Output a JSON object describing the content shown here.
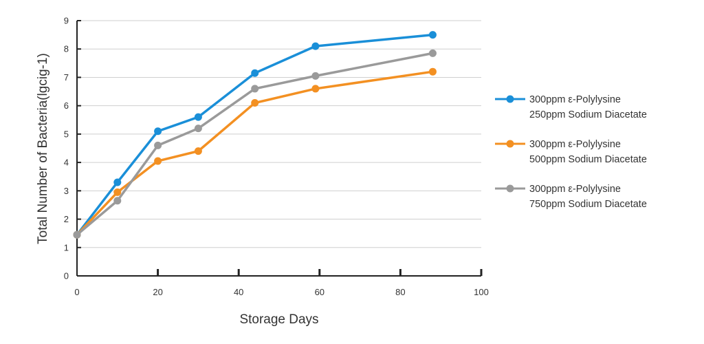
{
  "chart_data": {
    "type": "line",
    "xlabel": "Storage Days",
    "ylabel": "Total Number of Bacteria(lgcig-1)",
    "xlim": [
      0,
      100
    ],
    "ylim": [
      0,
      9
    ],
    "xticks": [
      "0",
      "20",
      "40",
      "60",
      "80",
      "100"
    ],
    "yticks": [
      "0",
      "1",
      "2",
      "3",
      "4",
      "5",
      "6",
      "7",
      "8",
      "9"
    ],
    "grid": "horizontal",
    "legend_position": "right",
    "x": [
      0,
      10,
      20,
      30,
      44,
      59,
      88
    ],
    "series": [
      {
        "name": "300ppm ε-Polylysine 250ppm Sodium Diacetate",
        "legend_lines": [
          "300ppm ε-Polylysine",
          "250ppm Sodium Diacetate"
        ],
        "color": "#1a8fd8",
        "values": [
          1.45,
          3.3,
          5.1,
          5.6,
          7.15,
          8.1,
          8.5
        ]
      },
      {
        "name": "300ppm ε-Polylysine 500ppm Sodium Diacetate",
        "legend_lines": [
          "300ppm ε-Polylysine",
          "500ppm Sodium Diacetate"
        ],
        "color": "#f39022",
        "values": [
          1.45,
          2.95,
          4.05,
          4.4,
          6.1,
          6.6,
          7.2
        ]
      },
      {
        "name": "300ppm ε-Polylysine 750ppm Sodium Diacetate",
        "legend_lines": [
          "300ppm ε-Polylysine",
          "750ppm Sodium Diacetate"
        ],
        "color": "#9a9a9a",
        "values": [
          1.45,
          2.65,
          4.6,
          5.2,
          6.6,
          7.05,
          7.85
        ]
      }
    ]
  }
}
